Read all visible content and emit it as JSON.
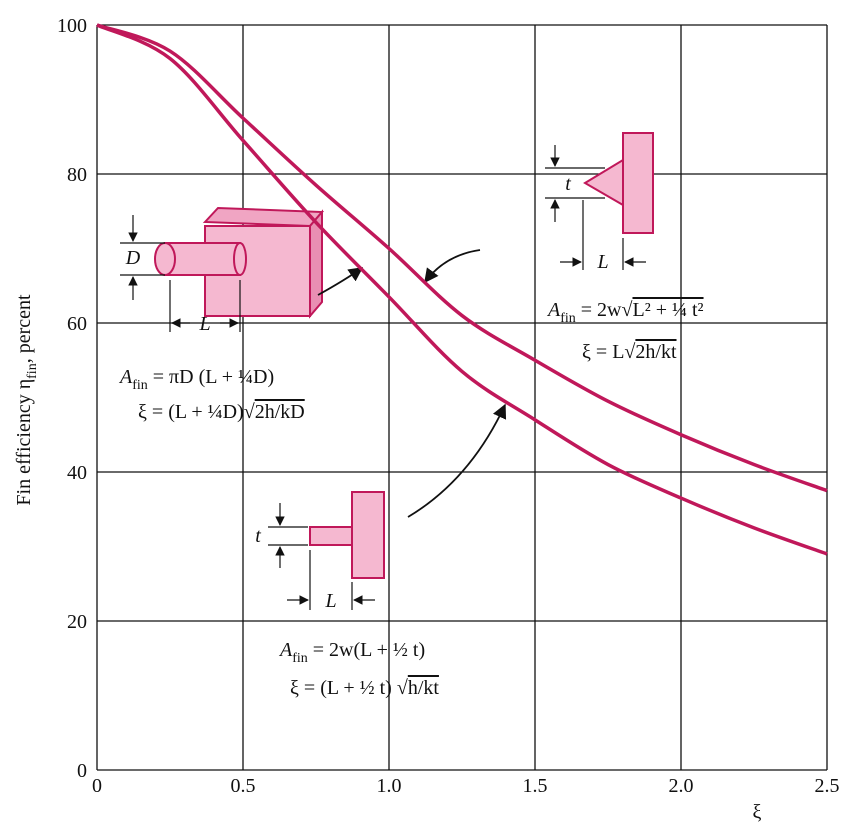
{
  "chart_data": {
    "type": "line",
    "x": [
      0,
      0.25,
      0.5,
      0.75,
      1,
      1.25,
      1.5,
      1.75,
      2,
      2.25,
      2.5
    ],
    "series": [
      {
        "color": "#c0185a",
        "values": [
          100,
          96.5,
          87.5,
          78.5,
          70,
          61,
          55,
          49.5,
          45,
          41,
          37.5
        ]
      },
      {
        "color": "#c0185a",
        "values": [
          100,
          95.5,
          84.5,
          73.5,
          63.5,
          53.5,
          47,
          41,
          36.5,
          32.5,
          29
        ]
      }
    ],
    "xlim": [
      0,
      2.5
    ],
    "ylim": [
      0,
      100
    ],
    "xticks": [
      0,
      0.5,
      {
        "value": 1,
        "label": "1.0"
      },
      1.5,
      {
        "value": 2,
        "label": "2.0"
      },
      2.5
    ],
    "yticks": [
      0,
      20,
      40,
      60,
      80,
      100
    ],
    "grid": true,
    "xlabel": "ξ",
    "ylabel": [
      "Fin efficiency η",
      "fin",
      ", percent"
    ],
    "annotations": {
      "pin": {
        "area": [
          "A",
          "fin",
          " = πD (L + ¼D)"
        ],
        "xi": [
          "ξ = (L + ¼D)√",
          "2h/kD"
        ],
        "dims": [
          "D",
          "L"
        ]
      },
      "triangle": {
        "area": [
          "A",
          "fin",
          " = 2w√",
          "L² + ¼ t²"
        ],
        "xi": [
          "ξ = L√",
          "2h/kt"
        ],
        "dims": [
          "t",
          "L"
        ]
      },
      "rect": {
        "area": [
          "A",
          "fin",
          " = 2w(L + ½ t)"
        ],
        "xi": [
          "ξ = (L + ½ t) √",
          "h/kt"
        ],
        "dims": [
          "t",
          "L"
        ]
      }
    }
  }
}
